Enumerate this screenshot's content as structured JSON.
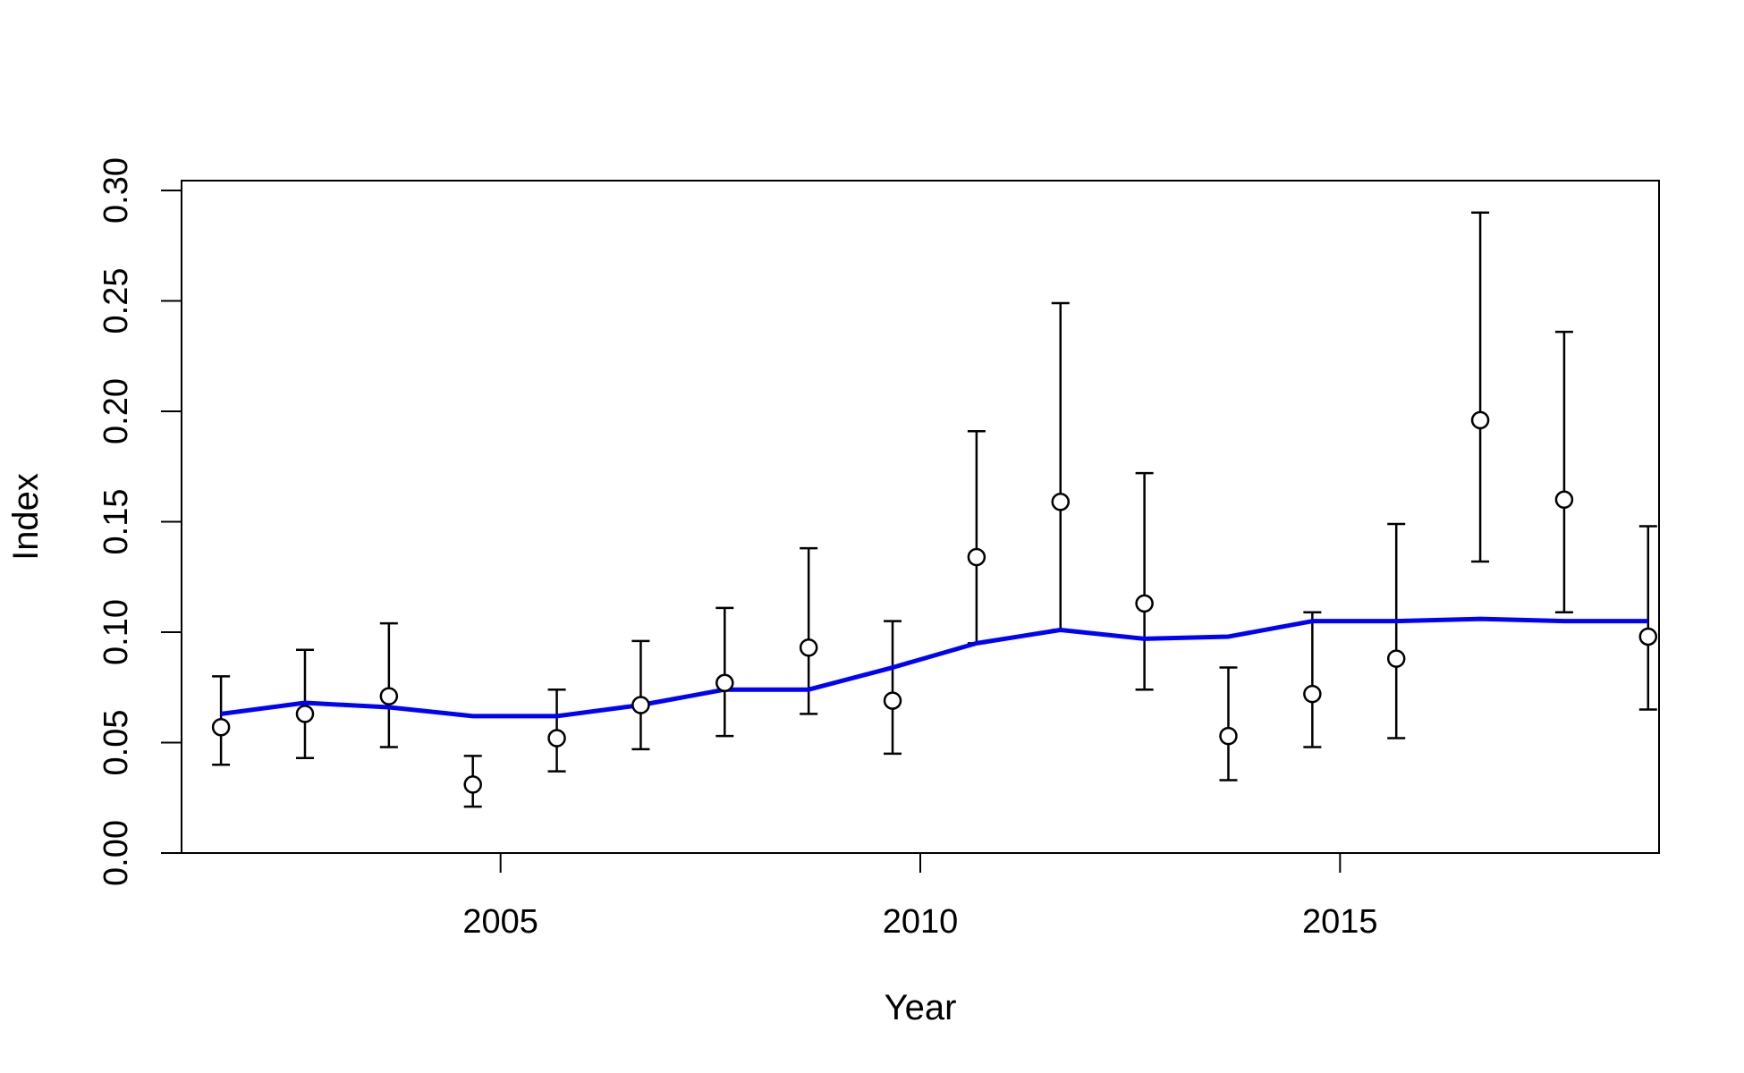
{
  "chart_data": {
    "type": "line",
    "title": "",
    "xlabel": "Year",
    "ylabel": "Index",
    "xlim": [
      2001.2,
      2018.8
    ],
    "ylim": [
      0.0,
      0.3
    ],
    "x_ticks": [
      "2005",
      "2010",
      "2015"
    ],
    "y_ticks": [
      "0.00",
      "0.05",
      "0.10",
      "0.15",
      "0.20",
      "0.25",
      "0.30"
    ],
    "observed": {
      "marker": "open-circle",
      "x": [
        2001.67,
        2002.67,
        2003.67,
        2004.67,
        2005.67,
        2006.67,
        2007.67,
        2008.67,
        2009.67,
        2010.67,
        2011.67,
        2012.67,
        2013.67,
        2014.67,
        2015.67,
        2016.67,
        2017.67,
        2018.67
      ],
      "y": [
        0.057,
        0.063,
        0.071,
        0.031,
        0.052,
        0.067,
        0.077,
        0.093,
        0.069,
        0.134,
        0.159,
        0.113,
        0.053,
        0.072,
        0.088,
        0.196,
        0.16,
        0.098
      ],
      "lower": [
        0.04,
        0.043,
        0.048,
        0.021,
        0.037,
        0.047,
        0.053,
        0.063,
        0.045,
        0.095,
        0.101,
        0.074,
        0.033,
        0.048,
        0.052,
        0.132,
        0.109,
        0.065
      ],
      "upper": [
        0.08,
        0.092,
        0.104,
        0.044,
        0.074,
        0.096,
        0.111,
        0.138,
        0.105,
        0.191,
        0.249,
        0.172,
        0.084,
        0.109,
        0.149,
        0.29,
        0.236,
        0.148
      ]
    },
    "fitted": {
      "color": "#0000ff",
      "x": [
        2001.67,
        2002.67,
        2003.67,
        2004.67,
        2005.67,
        2006.67,
        2007.67,
        2008.67,
        2009.67,
        2010.67,
        2011.67,
        2012.67,
        2013.67,
        2014.67,
        2015.67,
        2016.67,
        2017.67,
        2018.67
      ],
      "y": [
        0.063,
        0.068,
        0.066,
        0.062,
        0.062,
        0.067,
        0.074,
        0.074,
        0.084,
        0.095,
        0.101,
        0.097,
        0.098,
        0.105,
        0.105,
        0.106,
        0.105,
        0.105
      ]
    },
    "grid": false,
    "legend": "none"
  }
}
